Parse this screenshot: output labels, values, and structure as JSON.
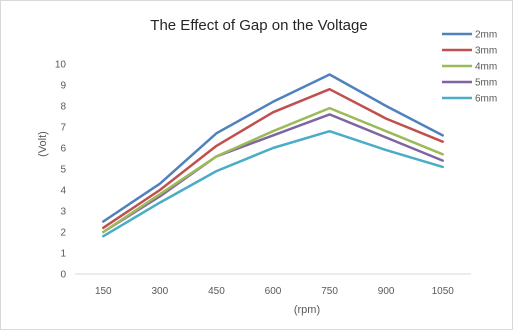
{
  "chart_data": {
    "type": "line",
    "title": "The Effect of  Gap on the Voltage",
    "xlabel": "(rpm)",
    "ylabel": "(Volt)",
    "categories": [
      "150",
      "300",
      "450",
      "600",
      "750",
      "900",
      "1050"
    ],
    "ylim": [
      0,
      10
    ],
    "yticks": [
      0,
      1,
      2,
      3,
      4,
      5,
      6,
      7,
      8,
      9,
      10
    ],
    "grid": false,
    "legend_position": "top-right",
    "series": [
      {
        "name": "2mm",
        "color": "#4f81bd",
        "values": [
          2.5,
          4.3,
          6.7,
          8.2,
          9.5,
          8.0,
          6.6
        ]
      },
      {
        "name": "3mm",
        "color": "#c0504d",
        "values": [
          2.2,
          4.0,
          6.1,
          7.7,
          8.8,
          7.4,
          6.3
        ]
      },
      {
        "name": "4mm",
        "color": "#9bbb59",
        "values": [
          2.0,
          3.8,
          5.6,
          6.8,
          7.9,
          6.8,
          5.7
        ]
      },
      {
        "name": "5mm",
        "color": "#8064a2",
        "values": [
          2.0,
          3.7,
          5.6,
          6.6,
          7.6,
          6.5,
          5.4
        ]
      },
      {
        "name": "6mm",
        "color": "#4bacc6",
        "values": [
          1.8,
          3.4,
          4.9,
          6.0,
          6.8,
          5.9,
          5.1
        ]
      }
    ]
  }
}
